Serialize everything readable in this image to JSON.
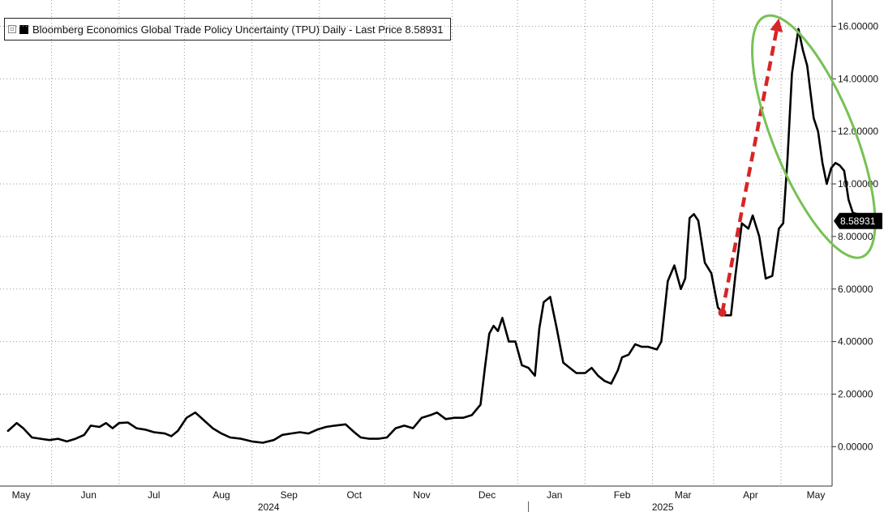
{
  "chart_data": {
    "type": "line",
    "legend": {
      "label": "Bloomberg Economics Global Trade Policy Uncertainty (TPU) Daily - Last Price 8.58931",
      "placement": "top-left"
    },
    "last_price_label": "8.58931",
    "ylim": [
      -1.5,
      17.0
    ],
    "y_ticks": [
      {
        "value": 0,
        "label": "0.00000"
      },
      {
        "value": 2,
        "label": "2.00000"
      },
      {
        "value": 4,
        "label": "4.00000"
      },
      {
        "value": 6,
        "label": "6.00000"
      },
      {
        "value": 8,
        "label": "8.00000"
      },
      {
        "value": 10,
        "label": "10.00000"
      },
      {
        "value": 12,
        "label": "12.00000"
      },
      {
        "value": 14,
        "label": "14.00000"
      },
      {
        "value": 16,
        "label": "16.00000"
      }
    ],
    "month_ticks": [
      {
        "date": "2024-05-01",
        "label": "May"
      },
      {
        "date": "2024-06-01",
        "label": "Jun"
      },
      {
        "date": "2024-07-01",
        "label": "Jul"
      },
      {
        "date": "2024-08-01",
        "label": "Aug"
      },
      {
        "date": "2024-09-01",
        "label": "Sep"
      },
      {
        "date": "2024-10-01",
        "label": "Oct"
      },
      {
        "date": "2024-11-01",
        "label": "Nov"
      },
      {
        "date": "2024-12-01",
        "label": "Dec"
      },
      {
        "date": "2025-01-01",
        "label": "Jan"
      },
      {
        "date": "2025-02-01",
        "label": "Feb"
      },
      {
        "date": "2025-03-01",
        "label": "Mar"
      },
      {
        "date": "2025-04-01",
        "label": "Apr"
      },
      {
        "date": "2025-05-01",
        "label": "May"
      }
    ],
    "year_labels": [
      {
        "date": "2024-09-01",
        "label": "2024"
      },
      {
        "date": "2025-03-01",
        "label": "2025"
      }
    ],
    "grid": true,
    "series": [
      {
        "color": "#000000",
        "points": [
          [
            "2024-04-25",
            0.6
          ],
          [
            "2024-04-29",
            0.9
          ],
          [
            "2024-05-02",
            0.7
          ],
          [
            "2024-05-06",
            0.35
          ],
          [
            "2024-05-10",
            0.3
          ],
          [
            "2024-05-14",
            0.25
          ],
          [
            "2024-05-18",
            0.3
          ],
          [
            "2024-05-22",
            0.2
          ],
          [
            "2024-05-26",
            0.3
          ],
          [
            "2024-05-30",
            0.45
          ],
          [
            "2024-06-02",
            0.8
          ],
          [
            "2024-06-06",
            0.75
          ],
          [
            "2024-06-09",
            0.9
          ],
          [
            "2024-06-12",
            0.7
          ],
          [
            "2024-06-15",
            0.9
          ],
          [
            "2024-06-19",
            0.92
          ],
          [
            "2024-06-23",
            0.7
          ],
          [
            "2024-06-27",
            0.65
          ],
          [
            "2024-07-01",
            0.55
          ],
          [
            "2024-07-06",
            0.5
          ],
          [
            "2024-07-09",
            0.4
          ],
          [
            "2024-07-12",
            0.6
          ],
          [
            "2024-07-16",
            1.1
          ],
          [
            "2024-07-20",
            1.3
          ],
          [
            "2024-07-24",
            1.0
          ],
          [
            "2024-07-28",
            0.7
          ],
          [
            "2024-08-01",
            0.5
          ],
          [
            "2024-08-05",
            0.35
          ],
          [
            "2024-08-10",
            0.3
          ],
          [
            "2024-08-15",
            0.2
          ],
          [
            "2024-08-20",
            0.15
          ],
          [
            "2024-08-25",
            0.25
          ],
          [
            "2024-08-29",
            0.45
          ],
          [
            "2024-09-02",
            0.5
          ],
          [
            "2024-09-06",
            0.55
          ],
          [
            "2024-09-10",
            0.5
          ],
          [
            "2024-09-14",
            0.65
          ],
          [
            "2024-09-18",
            0.75
          ],
          [
            "2024-09-22",
            0.8
          ],
          [
            "2024-09-27",
            0.85
          ],
          [
            "2024-10-01",
            0.55
          ],
          [
            "2024-10-04",
            0.35
          ],
          [
            "2024-10-08",
            0.3
          ],
          [
            "2024-10-12",
            0.3
          ],
          [
            "2024-10-16",
            0.35
          ],
          [
            "2024-10-20",
            0.7
          ],
          [
            "2024-10-24",
            0.8
          ],
          [
            "2024-10-28",
            0.7
          ],
          [
            "2024-11-01",
            1.1
          ],
          [
            "2024-11-05",
            1.2
          ],
          [
            "2024-11-08",
            1.3
          ],
          [
            "2024-11-12",
            1.05
          ],
          [
            "2024-11-16",
            1.1
          ],
          [
            "2024-11-20",
            1.1
          ],
          [
            "2024-11-24",
            1.2
          ],
          [
            "2024-11-28",
            1.6
          ],
          [
            "2024-11-30",
            3.0
          ],
          [
            "2024-12-02",
            4.3
          ],
          [
            "2024-12-04",
            4.6
          ],
          [
            "2024-12-06",
            4.4
          ],
          [
            "2024-12-08",
            4.9
          ],
          [
            "2024-12-11",
            4.0
          ],
          [
            "2024-12-14",
            4.0
          ],
          [
            "2024-12-17",
            3.1
          ],
          [
            "2024-12-20",
            3.0
          ],
          [
            "2024-12-23",
            2.7
          ],
          [
            "2024-12-25",
            4.5
          ],
          [
            "2024-12-27",
            5.5
          ],
          [
            "2024-12-30",
            5.7
          ],
          [
            "2025-01-02",
            4.5
          ],
          [
            "2025-01-05",
            3.2
          ],
          [
            "2025-01-08",
            3.0
          ],
          [
            "2025-01-11",
            2.8
          ],
          [
            "2025-01-15",
            2.8
          ],
          [
            "2025-01-18",
            3.0
          ],
          [
            "2025-01-21",
            2.7
          ],
          [
            "2025-01-24",
            2.5
          ],
          [
            "2025-01-27",
            2.4
          ],
          [
            "2025-01-30",
            2.9
          ],
          [
            "2025-02-01",
            3.4
          ],
          [
            "2025-02-04",
            3.5
          ],
          [
            "2025-02-07",
            3.9
          ],
          [
            "2025-02-10",
            3.8
          ],
          [
            "2025-02-13",
            3.8
          ],
          [
            "2025-02-17",
            3.7
          ],
          [
            "2025-02-19",
            4.0
          ],
          [
            "2025-02-22",
            6.3
          ],
          [
            "2025-02-25",
            6.9
          ],
          [
            "2025-02-28",
            6.0
          ],
          [
            "2025-03-02",
            6.4
          ],
          [
            "2025-03-04",
            8.7
          ],
          [
            "2025-03-06",
            8.85
          ],
          [
            "2025-03-08",
            8.6
          ],
          [
            "2025-03-11",
            7.0
          ],
          [
            "2025-03-14",
            6.6
          ],
          [
            "2025-03-17",
            5.3
          ],
          [
            "2025-03-20",
            5.0
          ],
          [
            "2025-03-23",
            5.0
          ],
          [
            "2025-03-25",
            6.5
          ],
          [
            "2025-03-28",
            8.5
          ],
          [
            "2025-03-31",
            8.3
          ],
          [
            "2025-04-02",
            8.8
          ],
          [
            "2025-04-05",
            8.0
          ],
          [
            "2025-04-08",
            6.4
          ],
          [
            "2025-04-11",
            6.5
          ],
          [
            "2025-04-14",
            8.3
          ],
          [
            "2025-04-16",
            8.5
          ],
          [
            "2025-04-18",
            11.0
          ],
          [
            "2025-04-20",
            14.2
          ],
          [
            "2025-04-23",
            15.9
          ],
          [
            "2025-04-25",
            15.1
          ],
          [
            "2025-04-27",
            14.5
          ],
          [
            "2025-04-30",
            12.5
          ],
          [
            "2025-05-02",
            12.0
          ],
          [
            "2025-05-04",
            10.8
          ],
          [
            "2025-05-06",
            10.0
          ],
          [
            "2025-05-08",
            10.6
          ],
          [
            "2025-05-10",
            10.8
          ],
          [
            "2025-05-12",
            10.7
          ],
          [
            "2025-05-14",
            10.5
          ],
          [
            "2025-05-16",
            9.4
          ],
          [
            "2025-05-18",
            8.9
          ],
          [
            "2025-05-20",
            8.85
          ],
          [
            "2025-05-22",
            8.59
          ]
        ]
      }
    ],
    "annotations": [
      {
        "type": "arrow",
        "color": "#d62626",
        "style": "dashed",
        "from": [
          "2025-03-19",
          5.1
        ],
        "to": [
          "2025-04-14",
          16.3
        ]
      },
      {
        "type": "ellipse",
        "color": "#77c154",
        "center": [
          "2025-04-30",
          11.8
        ]
      },
      {
        "type": "end-marker",
        "color": "#d62626",
        "at": [
          "2025-03-19",
          5.1
        ]
      }
    ]
  }
}
